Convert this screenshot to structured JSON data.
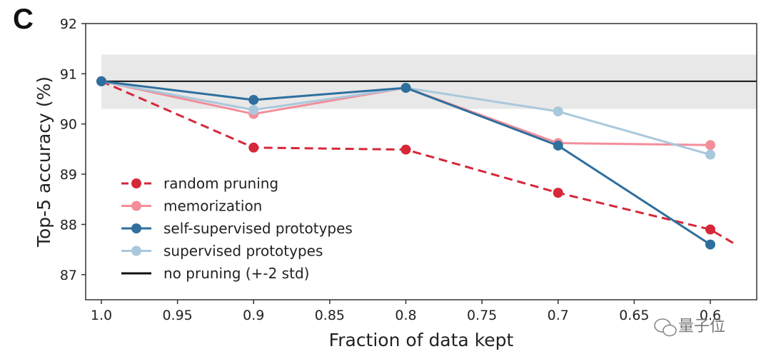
{
  "panel_label": "C",
  "watermark": "量子位",
  "chart_data": {
    "type": "line",
    "title": "",
    "xlabel": "Fraction of data kept",
    "ylabel": "Top-5 accuracy (%)",
    "x_ticks": [
      "1.0",
      "0.95",
      "0.9",
      "0.85",
      "0.8",
      "0.75",
      "0.7",
      "0.65",
      "0.6"
    ],
    "y_ticks": [
      "87",
      "88",
      "89",
      "90",
      "91",
      "92"
    ],
    "xlim": [
      1.0,
      0.585
    ],
    "ylim": [
      86.5,
      92.0
    ],
    "x": [
      1.0,
      0.9,
      0.8,
      0.7,
      0.6
    ],
    "series": [
      {
        "name": "random pruning",
        "color": "#d62839",
        "dashed": true,
        "values": [
          90.85,
          89.53,
          89.49,
          88.63,
          87.9
        ],
        "extend_to": [
          0.585,
          87.63
        ]
      },
      {
        "name": "memorization",
        "color": "#f28e9a",
        "dashed": false,
        "values": [
          90.85,
          90.2,
          90.72,
          89.62,
          89.58
        ]
      },
      {
        "name": "self-supervised prototypes",
        "color": "#2e6f9e",
        "dashed": false,
        "values": [
          90.85,
          90.48,
          90.72,
          89.57,
          87.6
        ]
      },
      {
        "name": "supervised prototypes",
        "color": "#a9c8dc",
        "dashed": false,
        "values": [
          90.85,
          90.28,
          90.72,
          90.25,
          89.39
        ]
      }
    ],
    "baseline": {
      "name": "no pruning (+-2 std)",
      "value": 90.85,
      "band": [
        90.3,
        91.38
      ],
      "color": "#111111",
      "band_color": "#e8e8e8"
    }
  }
}
